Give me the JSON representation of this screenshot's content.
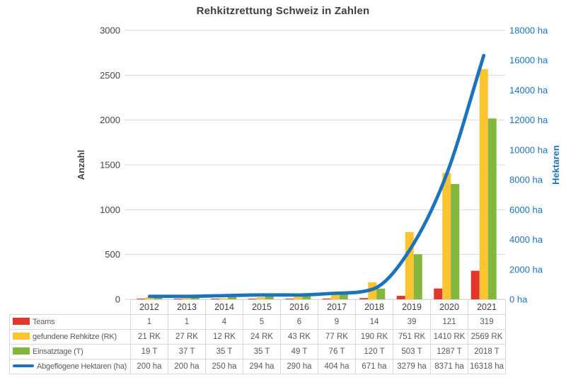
{
  "title": "Rehkitzrettung Schweiz in Zahlen",
  "colors": {
    "grid": "#d9d9d9",
    "axis_text": "#454545",
    "right_axis_text": "#1b73be",
    "table_border": "#d9d9d9",
    "table_text": "#595959",
    "year_text": "#404040",
    "title_text": "#3f3f3f"
  },
  "chart_data": {
    "type": "combo bar+line, dual axis",
    "categories": [
      "2012",
      "2013",
      "2014",
      "2015",
      "2016",
      "2017",
      "2018",
      "2019",
      "2020",
      "2021"
    ],
    "series": [
      {
        "name": "Teams",
        "kind": "bar",
        "axis": "left",
        "color": "#e2352c",
        "values": [
          1,
          1,
          4,
          5,
          6,
          9,
          14,
          39,
          121,
          319
        ],
        "table_labels": [
          "1",
          "1",
          "4",
          "5",
          "6",
          "9",
          "14",
          "39",
          "121",
          "319"
        ]
      },
      {
        "name": "gefundene Rehkitze (RK)",
        "kind": "bar",
        "axis": "left",
        "color": "#fdc431",
        "values": [
          21,
          27,
          12,
          24,
          43,
          77,
          190,
          751,
          1410,
          2569
        ],
        "table_labels": [
          "21 RK",
          "27 RK",
          "12 RK",
          "24 RK",
          "43 RK",
          "77 RK",
          "190 RK",
          "751 RK",
          "1410 RK",
          "2569 RK"
        ]
      },
      {
        "name": "Einsatztage (T)",
        "kind": "bar",
        "axis": "left",
        "color": "#83b63c",
        "values": [
          19,
          37,
          35,
          35,
          49,
          76,
          120,
          503,
          1287,
          2018
        ],
        "table_labels": [
          "19 T",
          "37 T",
          "35 T",
          "35 T",
          "49 T",
          "76 T",
          "120 T",
          "503 T",
          "1287 T",
          "2018 T"
        ]
      },
      {
        "name": "Abgeflogene Hektaren (ha)",
        "kind": "line",
        "axis": "right",
        "color": "#1b73be",
        "values": [
          200,
          200,
          250,
          294,
          290,
          404,
          671,
          3279,
          8371,
          16318
        ],
        "table_labels": [
          "200 ha",
          "200 ha",
          "250 ha",
          "294 ha",
          "290 ha",
          "404 ha",
          "671 ha",
          "3279 ha",
          "8371 ha",
          "16318 ha"
        ]
      }
    ],
    "left_axis": {
      "title": "Anzahl",
      "min": 0,
      "max": 3000,
      "step": 500
    },
    "right_axis": {
      "title": "Hektaren",
      "min": 0,
      "max": 18000,
      "step": 2000,
      "label_suffix": " ha"
    },
    "grid": true,
    "legend_position": "table-below"
  }
}
